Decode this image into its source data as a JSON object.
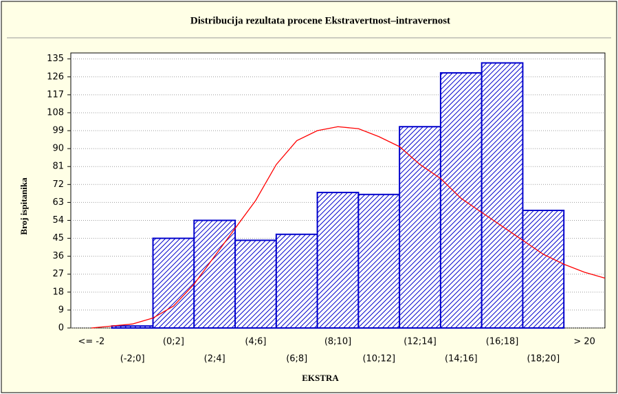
{
  "chart_data": {
    "type": "bar",
    "title": "Distribucija rezultata procene Ekstravertnost–intravernost",
    "x_label": "EKSTRA",
    "y_label": "Broj ispitanika",
    "categories": [
      "<= -2",
      "(-2;0]",
      "(0;2]",
      "(2;4]",
      "(4;6]",
      "(6;8]",
      "(8;10]",
      "(10;12]",
      "(12;14]",
      "(14;16]",
      "(16;18]",
      "(18;20]",
      "> 20"
    ],
    "values": [
      0,
      1,
      45,
      54,
      44,
      47,
      68,
      67,
      101,
      128,
      133,
      59,
      0
    ],
    "color": "#0000cc",
    "ylim": [
      0,
      138
    ],
    "yticks": [
      0,
      9,
      18,
      27,
      36,
      45,
      54,
      63,
      72,
      81,
      90,
      99,
      108,
      117,
      126,
      135
    ],
    "grid": true,
    "curve": {
      "color": "#ff0000",
      "xlim": [
        -4,
        22
      ],
      "x": [
        -3,
        -2,
        -1,
        0,
        1,
        2,
        3,
        4,
        5,
        6,
        7,
        8,
        9,
        10,
        11,
        12,
        13,
        14,
        15,
        16,
        17,
        18,
        19,
        20,
        21,
        22
      ],
      "values": [
        0,
        1,
        2,
        5,
        11,
        22,
        36,
        50,
        64,
        82,
        94,
        99,
        101,
        100,
        96,
        91,
        82,
        75,
        65,
        58,
        51,
        44,
        37,
        32,
        28,
        25
      ]
    }
  }
}
